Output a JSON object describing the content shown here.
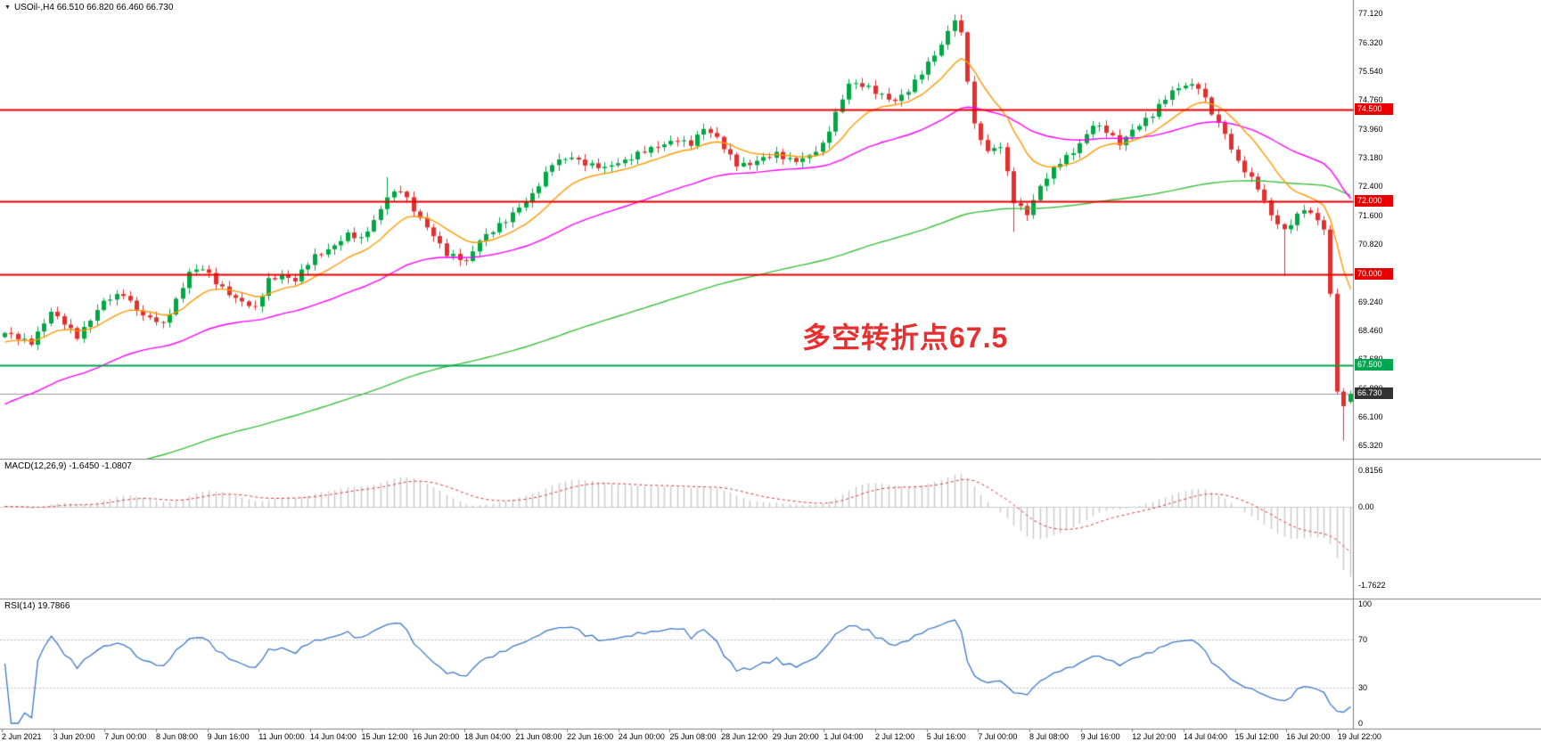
{
  "symbol_bar": {
    "text": "USOil-,H4 66.510 66.820 66.460 66.730"
  },
  "annotation": {
    "text": "多空转折点67.5",
    "color": "#e53030"
  },
  "main_chart": {
    "y_ticks": [
      "77.120",
      "76.320",
      "75.540",
      "74.760",
      "73.960",
      "73.180",
      "72.400",
      "71.600",
      "70.820",
      "70.040",
      "69.240",
      "68.460",
      "67.680",
      "66.880",
      "66.100",
      "65.320"
    ],
    "hlines": [
      {
        "value": 74.5,
        "label": "74.500",
        "color": "#e60000"
      },
      {
        "value": 72.0,
        "label": "72.000",
        "color": "#e60000"
      },
      {
        "value": 70.0,
        "label": "70.000",
        "color": "#e60000"
      },
      {
        "value": 67.5,
        "label": "67.500",
        "color": "#00a651"
      }
    ],
    "current_price": {
      "value": 66.73,
      "label": "66.730",
      "badge_color": "#333333",
      "line_color": "#999999"
    }
  },
  "macd": {
    "label": "MACD(12,26,9) -1.6450 -1.0807",
    "axis": [
      "0.8156",
      "0.00",
      "-1.7622"
    ],
    "last_values": [
      -1.645,
      -1.0807
    ]
  },
  "rsi": {
    "label": "RSI(14) 19.7866",
    "axis": [
      "100",
      "70",
      "30",
      "0"
    ],
    "levels": [
      70,
      30
    ],
    "last_value": 19.7866
  },
  "time_axis": {
    "labels": [
      "2 Jun 2021",
      "3 Jun 20:00",
      "7 Jun 00:00",
      "8 Jun 08:00",
      "9 Jun 16:00",
      "11 Jun 00:00",
      "14 Jun 04:00",
      "15 Jun 12:00",
      "16 Jun 20:00",
      "18 Jun 04:00",
      "21 Jun 08:00",
      "22 Jun 16:00",
      "24 Jun 00:00",
      "25 Jun 08:00",
      "28 Jun 12:00",
      "29 Jun 20:00",
      "1 Jul 04:00",
      "2 Jul 12:00",
      "5 Jul 16:00",
      "7 Jul 00:00",
      "8 Jul 08:00",
      "9 Jul 16:00",
      "12 Jul 20:00",
      "14 Jul 04:00",
      "15 Jul 12:00",
      "16 Jul 20:00",
      "19 Jul 22:00"
    ]
  },
  "chart_data": {
    "type": "candlestick",
    "symbol": "USOil",
    "timeframe": "H4",
    "title": "USOil-,H4 66.510 66.820 66.460 66.730",
    "x_range": [
      "2 Jun 2021 00:00",
      "19 Jul 2021 22:00"
    ],
    "y_range": [
      65.32,
      77.12
    ],
    "bars_total": 205,
    "last_candle_ohlc": [
      66.51,
      66.82,
      66.46,
      66.73
    ],
    "close_anchors": [
      [
        0,
        68.35
      ],
      [
        4,
        68.2
      ],
      [
        7,
        68.95
      ],
      [
        11,
        68.3
      ],
      [
        15,
        69.2
      ],
      [
        18,
        69.5
      ],
      [
        21,
        68.9
      ],
      [
        24,
        68.6
      ],
      [
        26,
        69.3
      ],
      [
        28,
        70.05
      ],
      [
        30,
        70.1
      ],
      [
        32,
        69.75
      ],
      [
        35,
        69.4
      ],
      [
        38,
        69.05
      ],
      [
        40,
        69.85
      ],
      [
        42,
        70.0
      ],
      [
        44,
        69.8
      ],
      [
        47,
        70.45
      ],
      [
        49,
        70.7
      ],
      [
        52,
        71.1
      ],
      [
        54,
        70.95
      ],
      [
        56,
        71.5
      ],
      [
        58,
        72.15
      ],
      [
        60,
        72.25
      ],
      [
        62,
        71.7
      ],
      [
        65,
        71.1
      ],
      [
        67,
        70.55
      ],
      [
        70,
        70.35
      ],
      [
        72,
        71.0
      ],
      [
        76,
        71.4
      ],
      [
        80,
        72.2
      ],
      [
        83,
        73.0
      ],
      [
        86,
        73.25
      ],
      [
        89,
        73.0
      ],
      [
        91,
        72.85
      ],
      [
        94,
        73.1
      ],
      [
        96,
        73.3
      ],
      [
        99,
        73.45
      ],
      [
        102,
        73.75
      ],
      [
        104,
        73.6
      ],
      [
        106,
        73.95
      ],
      [
        108,
        73.7
      ],
      [
        111,
        73.0
      ],
      [
        113,
        72.95
      ],
      [
        117,
        73.35
      ],
      [
        120,
        73.1
      ],
      [
        122,
        73.2
      ],
      [
        124,
        73.55
      ],
      [
        126,
        74.4
      ],
      [
        128,
        75.15
      ],
      [
        131,
        75.1
      ],
      [
        133,
        74.95
      ],
      [
        135,
        74.75
      ],
      [
        137,
        75.0
      ],
      [
        140,
        75.8
      ],
      [
        142,
        76.25
      ],
      [
        144,
        76.9
      ],
      [
        145,
        76.5
      ],
      [
        147,
        74.1
      ],
      [
        149,
        73.4
      ],
      [
        151,
        73.5
      ],
      [
        153,
        72.0
      ],
      [
        155,
        71.7
      ],
      [
        157,
        72.4
      ],
      [
        160,
        73.0
      ],
      [
        162,
        73.35
      ],
      [
        165,
        74.1
      ],
      [
        167,
        73.9
      ],
      [
        169,
        73.6
      ],
      [
        171,
        74.0
      ],
      [
        174,
        74.3
      ],
      [
        177,
        75.0
      ],
      [
        179,
        75.2
      ],
      [
        181,
        75.1
      ],
      [
        183,
        74.4
      ],
      [
        185,
        73.9
      ],
      [
        187,
        73.1
      ],
      [
        190,
        72.3
      ],
      [
        192,
        71.6
      ],
      [
        194,
        71.2
      ],
      [
        197,
        71.75
      ],
      [
        199,
        71.5
      ],
      [
        200,
        71.3
      ],
      [
        201,
        69.5
      ],
      [
        202,
        66.9
      ],
      [
        203,
        66.35
      ],
      [
        204,
        66.73
      ]
    ],
    "special_wicks": {
      "58": {
        "high": 72.65
      },
      "144": {
        "high": 77.1
      },
      "153": {
        "low": 71.15
      },
      "194": {
        "low": 69.95
      },
      "203": {
        "low": 65.45
      }
    },
    "overlays": [
      {
        "name": "ma-fast",
        "type": "ema",
        "period": 12,
        "seed": 68.1,
        "color_key": "ma_fast"
      },
      {
        "name": "ma-mid",
        "type": "ema",
        "period": 44,
        "seed": 66.35,
        "color_key": "ma_mid"
      },
      {
        "name": "ma-slow",
        "type": "ema",
        "period": 150,
        "seed": 63.6,
        "color_key": "ma_slow"
      }
    ],
    "indicators": [
      {
        "name": "MACD",
        "params": [
          12,
          26,
          9
        ],
        "last_values": [
          -1.645,
          -1.0807
        ],
        "axis_range": [
          -1.95,
          0.95
        ],
        "axis_ticks": [
          0.8156,
          0,
          -1.7622
        ]
      },
      {
        "name": "RSI",
        "params": [
          14
        ],
        "last_value": 19.7866,
        "levels": [
          70,
          30
        ],
        "axis_range": [
          0,
          100
        ]
      }
    ],
    "hlines": [
      74.5,
      72.0,
      70.0,
      67.5
    ],
    "current_price": 66.73
  },
  "colors": {
    "bg": "#ffffff",
    "up": "#00a843",
    "down": "#e03030",
    "ma_fast": "#ff9800",
    "ma_mid": "#ff00ff",
    "ma_slow": "#3cbf3c",
    "macd_hist": "#c8c8c8",
    "macd_signal": "#e03030",
    "rsi_line": "#3c78c8",
    "levels_dotted": "#bbbbbb",
    "separator": "#808080",
    "axis_text": "#000000"
  }
}
